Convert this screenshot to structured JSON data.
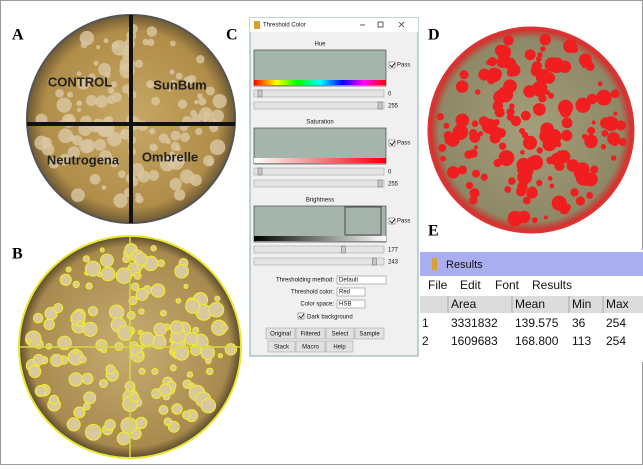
{
  "panels": {
    "a": "A",
    "b": "B",
    "c": "C",
    "d": "D",
    "e": "E"
  },
  "plate_a": {
    "quadrants": [
      "CONTROL",
      "SunBum",
      "Neutrogena",
      "Ombrelle"
    ]
  },
  "threshold": {
    "title": "Threshold Color",
    "sections": [
      {
        "label": "Hue",
        "pass": "Pass",
        "low": 0,
        "high": 255
      },
      {
        "label": "Saturation",
        "pass": "Pass",
        "low": 0,
        "high": 255
      },
      {
        "label": "Brightness",
        "pass": "Pass",
        "low": 177,
        "high": 243
      }
    ],
    "method_label": "Thresholding method:",
    "method": "Default",
    "color_label": "Threshold color:",
    "color": "Red",
    "space_label": "Color space:",
    "space": "HSB",
    "dark_background": "Dark background",
    "buttons": [
      "Original",
      "Filtered",
      "Select",
      "Sample",
      "Stack",
      "Macro",
      "Help"
    ]
  },
  "results": {
    "title": "Results",
    "menu": [
      "File",
      "Edit",
      "Font",
      "Results"
    ],
    "header": [
      "Area",
      "Mean",
      "Min",
      "Max"
    ],
    "rows": [
      [
        "1",
        "3331832",
        "139.575",
        "36",
        "254"
      ],
      [
        "2",
        "1609683",
        "168.800",
        "113",
        "254"
      ]
    ]
  }
}
